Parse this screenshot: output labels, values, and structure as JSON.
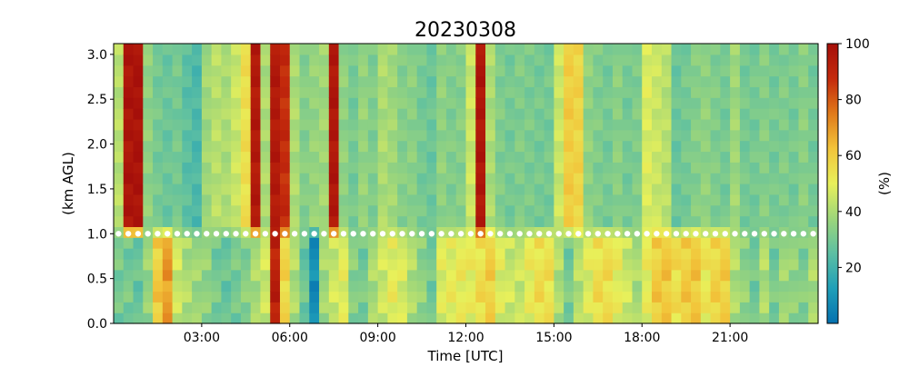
{
  "chart_data": {
    "type": "heatmap",
    "title": "20230308",
    "xlabel": "Time [UTC]",
    "ylabel": "(km AGL)",
    "colorbar_label": "(%)",
    "xlim": [
      0,
      24
    ],
    "ylim": [
      0,
      3.12
    ],
    "clim": [
      0,
      100
    ],
    "x_ticks": [
      {
        "value": 3,
        "label": "03:00"
      },
      {
        "value": 6,
        "label": "06:00"
      },
      {
        "value": 9,
        "label": "09:00"
      },
      {
        "value": 12,
        "label": "12:00"
      },
      {
        "value": 15,
        "label": "15:00"
      },
      {
        "value": 18,
        "label": "18:00"
      },
      {
        "value": 21,
        "label": "21:00"
      }
    ],
    "y_ticks": [
      {
        "value": 0.0,
        "label": "0.0"
      },
      {
        "value": 0.5,
        "label": "0.5"
      },
      {
        "value": 1.0,
        "label": "1.0"
      },
      {
        "value": 1.5,
        "label": "1.5"
      },
      {
        "value": 2.0,
        "label": "2.0"
      },
      {
        "value": 2.5,
        "label": "2.5"
      },
      {
        "value": 3.0,
        "label": "3.0"
      }
    ],
    "colorbar_ticks": [
      {
        "value": 20,
        "label": "20"
      },
      {
        "value": 40,
        "label": "40"
      },
      {
        "value": 60,
        "label": "60"
      },
      {
        "value": 80,
        "label": "80"
      },
      {
        "value": 100,
        "label": "100"
      }
    ],
    "colormap": [
      "#0571b0",
      "#1f9fb8",
      "#5cbfa3",
      "#9dd67a",
      "#e8f05a",
      "#f2c43a",
      "#e07a1a",
      "#c42a0c",
      "#a50f0a"
    ],
    "marker_line": {
      "y": 1.0,
      "color": "#ffffff"
    },
    "columns_per_hour": 3,
    "low_layer_values": [
      [
        30,
        30,
        28
      ],
      [
        36,
        60,
        70
      ],
      [
        45,
        40,
        38
      ],
      [
        35,
        30,
        28
      ],
      [
        30,
        33,
        40
      ],
      [
        45,
        92,
        58
      ],
      [
        40,
        28,
        8
      ],
      [
        38,
        45,
        50
      ],
      [
        33,
        30,
        40
      ],
      [
        45,
        50,
        48
      ],
      [
        40,
        35,
        30
      ],
      [
        48,
        50,
        52
      ],
      [
        50,
        55,
        60
      ],
      [
        48,
        45,
        45
      ],
      [
        50,
        55,
        55
      ],
      [
        40,
        30,
        42
      ],
      [
        48,
        55,
        56
      ],
      [
        50,
        45,
        40
      ],
      [
        50,
        60,
        62
      ],
      [
        55,
        60,
        62
      ],
      [
        52,
        58,
        60
      ],
      [
        40,
        35,
        30
      ],
      [
        40,
        30,
        38
      ],
      [
        35,
        32,
        40
      ]
    ],
    "upper_layer_values": [
      [
        42,
        97,
        98
      ],
      [
        35,
        30,
        28
      ],
      [
        30,
        25,
        22
      ],
      [
        38,
        42,
        40
      ],
      [
        45,
        55,
        95
      ],
      [
        40,
        95,
        88
      ],
      [
        40,
        33,
        36
      ],
      [
        38,
        96,
        35
      ],
      [
        30,
        36,
        32
      ],
      [
        40,
        38,
        33
      ],
      [
        34,
        30,
        28
      ],
      [
        35,
        32,
        33
      ],
      [
        45,
        96,
        40
      ],
      [
        32,
        30,
        32
      ],
      [
        31,
        30,
        30
      ],
      [
        45,
        60,
        58
      ],
      [
        35,
        32,
        30
      ],
      [
        34,
        30,
        32
      ],
      [
        48,
        45,
        42
      ],
      [
        28,
        30,
        33
      ],
      [
        35,
        32,
        30
      ],
      [
        38,
        30,
        30
      ],
      [
        33,
        30,
        32
      ],
      [
        30,
        34,
        30
      ]
    ]
  }
}
